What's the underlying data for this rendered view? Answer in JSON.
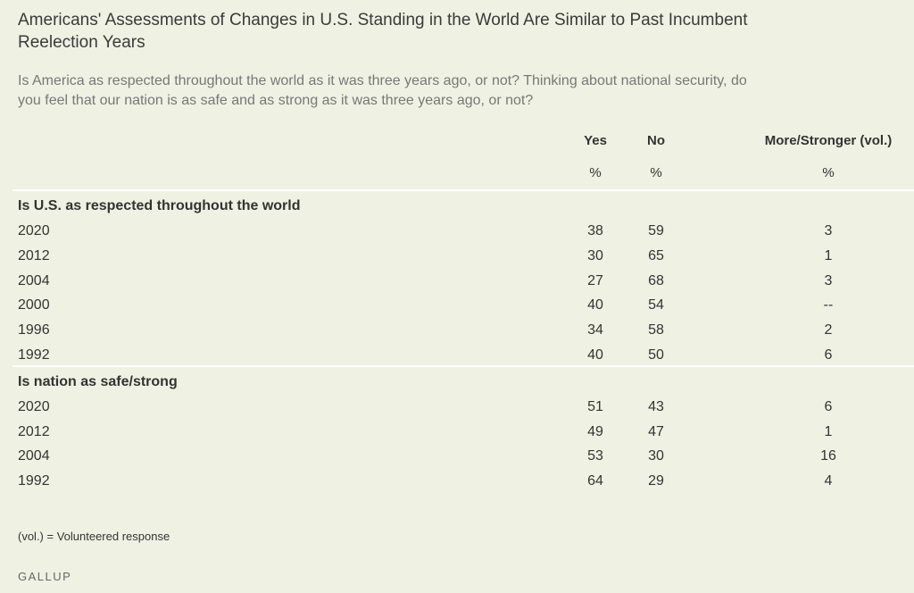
{
  "header": {
    "title": "Americans' Assessments of Changes in U.S. Standing in the World Are Similar to Past Incumbent Reelection Years",
    "subtitle": "Is America as respected throughout the world as it was three years ago, or not? Thinking about national security, do you feel that our nation is as safe and as strong as it was three years ago, or not?"
  },
  "table": {
    "columns": [
      "Yes",
      "No",
      "More/Stronger (vol.)"
    ],
    "units": [
      "%",
      "%",
      "%"
    ],
    "sections": [
      {
        "label": "Is U.S. as respected throughout the world",
        "rows": [
          [
            "2020",
            38,
            59,
            3
          ],
          [
            "2012",
            30,
            65,
            1
          ],
          [
            "2004",
            27,
            68,
            3
          ],
          [
            "2000",
            40,
            54,
            "--"
          ],
          [
            "1996",
            34,
            58,
            2
          ],
          [
            "1992",
            40,
            50,
            6
          ]
        ]
      },
      {
        "label": "Is nation as safe/strong",
        "rows": [
          [
            "2020",
            51,
            43,
            6
          ],
          [
            "2012",
            49,
            47,
            1
          ],
          [
            "2004",
            53,
            30,
            16
          ],
          [
            "1992",
            64,
            29,
            4
          ]
        ]
      }
    ]
  },
  "footer": {
    "note": "(vol.) = Volunteered response",
    "source": "GALLUP"
  }
}
